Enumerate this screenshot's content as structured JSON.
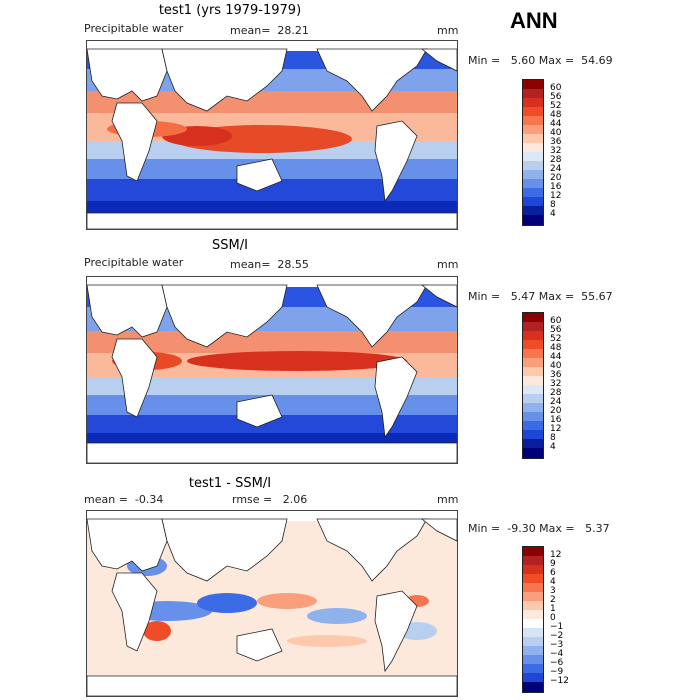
{
  "header": {
    "season": "ANN"
  },
  "panels": [
    {
      "title": "test1 (yrs 1979-1979)",
      "variable": "Precipitable water",
      "stat": "mean=  28.21",
      "units": "mm",
      "minmax": "Min =   5.60 Max =  54.69",
      "colorbar_labels": [
        "60",
        "56",
        "52",
        "48",
        "44",
        "40",
        "36",
        "32",
        "28",
        "24",
        "20",
        "16",
        "12",
        "8",
        "4"
      ]
    },
    {
      "title": "SSM/I",
      "variable": "Precipitable water",
      "stat": "mean=  28.55",
      "units": "mm",
      "minmax": "Min =   5.47 Max =  55.67",
      "colorbar_labels": [
        "60",
        "56",
        "52",
        "48",
        "44",
        "40",
        "36",
        "32",
        "28",
        "24",
        "20",
        "16",
        "12",
        "8",
        "4"
      ]
    },
    {
      "title": "test1 - SSM/I",
      "stat_left": "mean =  -0.34",
      "stat": "rmse =   2.06",
      "units": "mm",
      "minmax": "Min =  -9.30 Max =   5.37",
      "colorbar_labels": [
        "12",
        "9",
        "6",
        "4",
        "3",
        "2",
        "1",
        "0",
        "−1",
        "−2",
        "−3",
        "−4",
        "−6",
        "−9",
        "−12"
      ]
    }
  ],
  "colors": {
    "abs_scale": [
      "#8b0000",
      "#b22222",
      "#d7301f",
      "#ef4c28",
      "#f7764f",
      "#fb9e7c",
      "#fdc9ad",
      "#fde9dc",
      "#dce8f5",
      "#b8cff0",
      "#8fb1ec",
      "#6690ea",
      "#3c6be6",
      "#1f46d6",
      "#0a1f9e",
      "#00007a"
    ],
    "diff_scale": [
      "#8b0000",
      "#b22222",
      "#d7301f",
      "#ef4c28",
      "#f7764f",
      "#fb9e7c",
      "#fdc9ad",
      "#fde9dc",
      "#ffffff",
      "#d6e4f7",
      "#b8cff0",
      "#8fb1ec",
      "#6690ea",
      "#3c6be6",
      "#1f46d6",
      "#00007a"
    ]
  }
}
